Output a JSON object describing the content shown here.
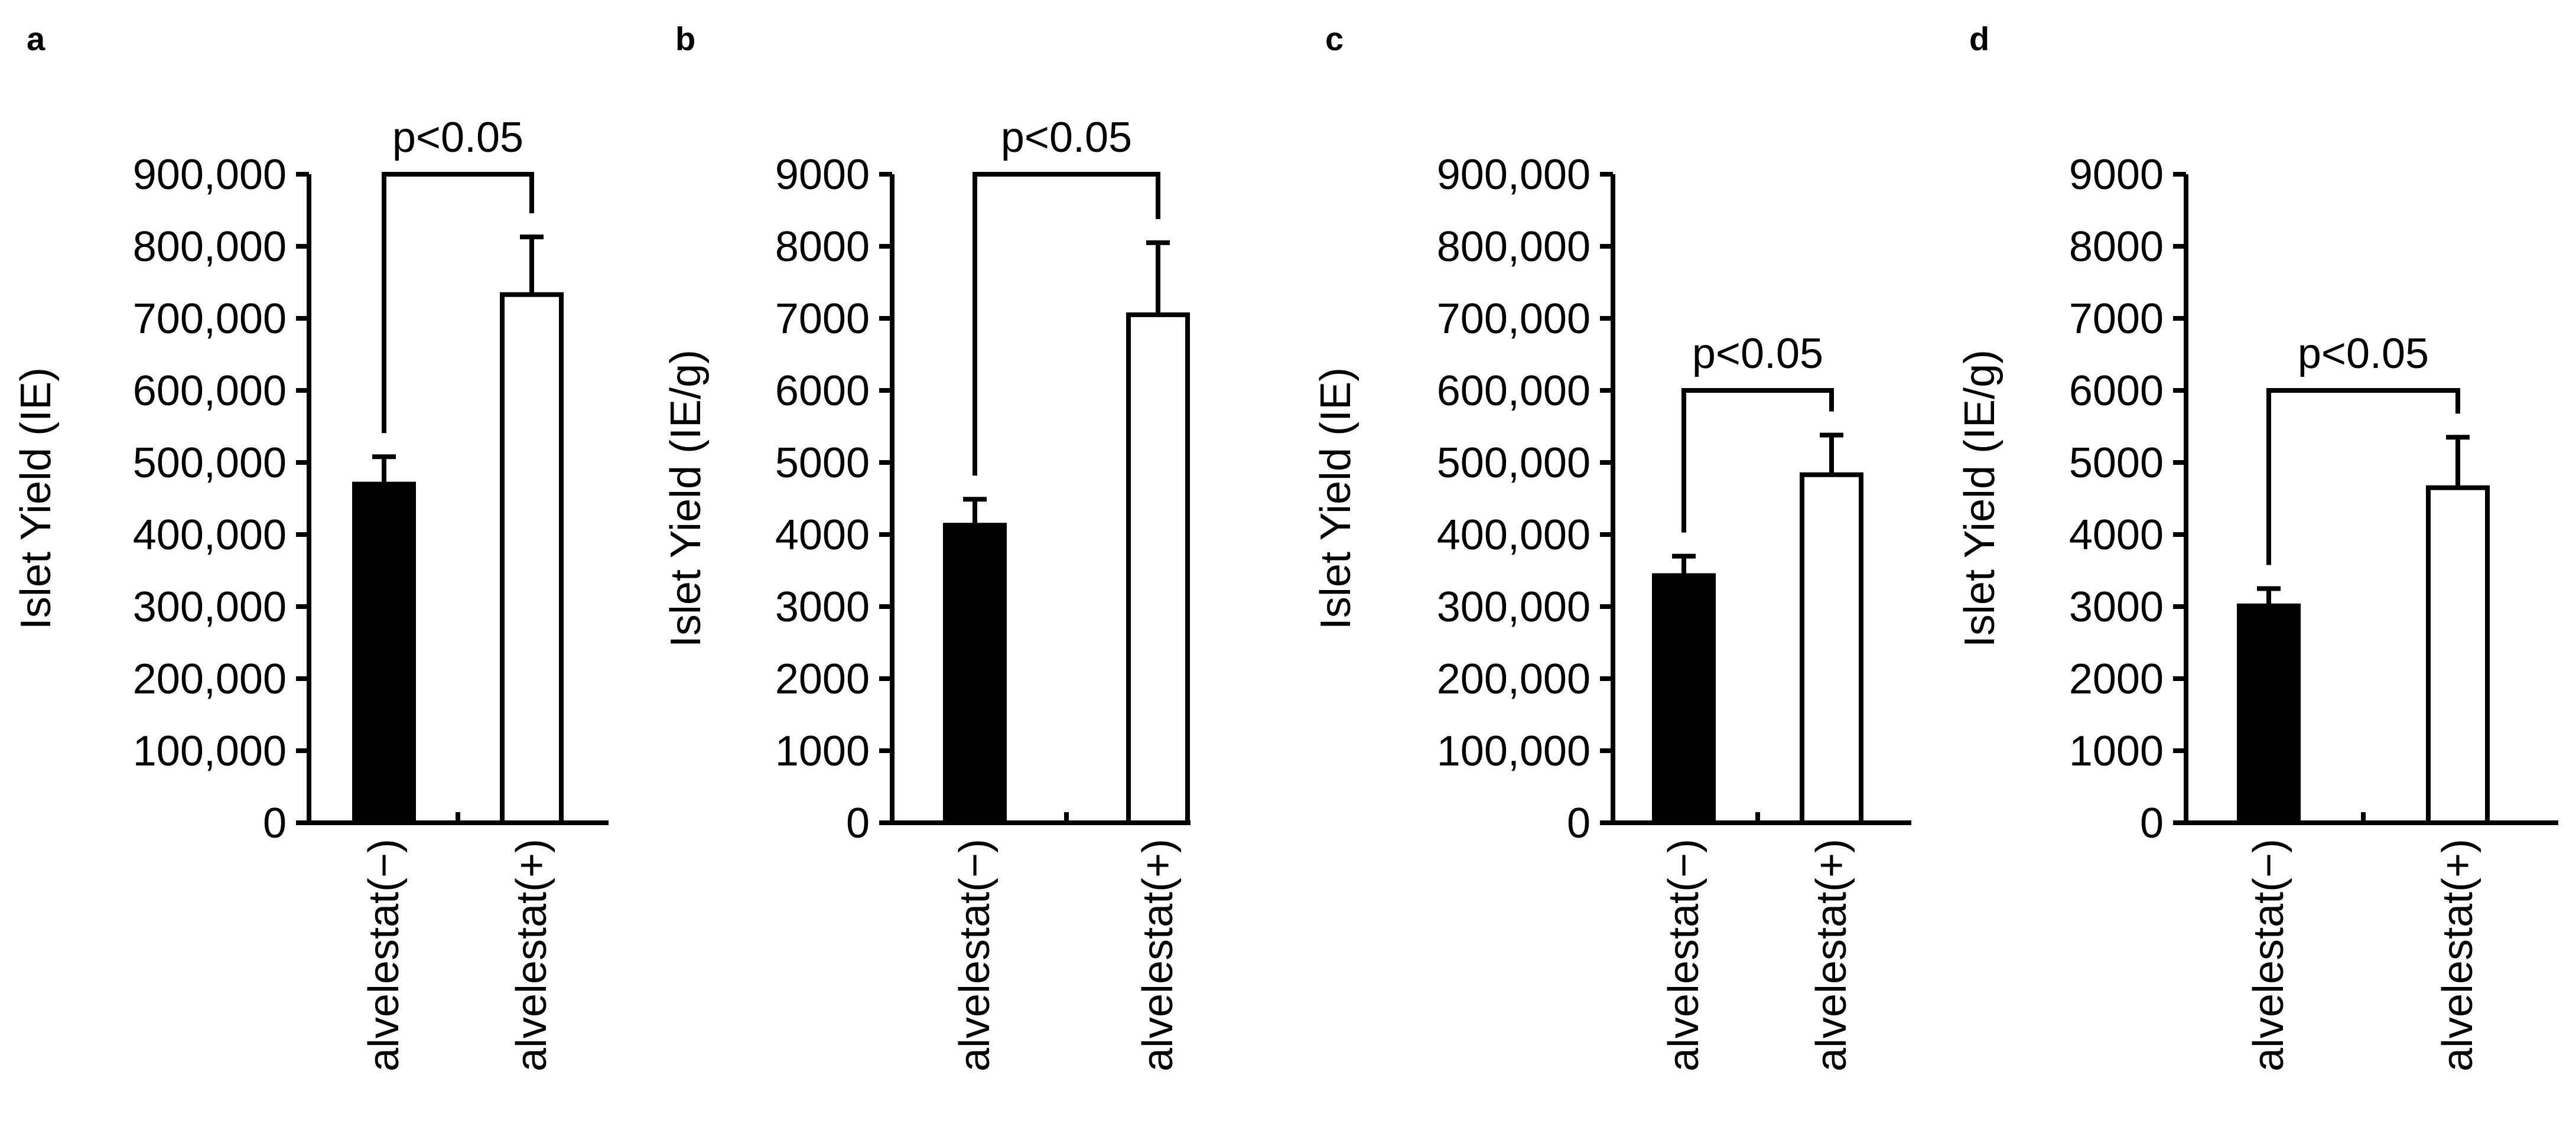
{
  "chart_data": [
    {
      "type": "bar",
      "panel": "a",
      "ylabel": "Islet Yield  (IE)",
      "ylim": [
        0,
        900000
      ],
      "yticks": [
        0,
        100000,
        200000,
        300000,
        400000,
        500000,
        600000,
        700000,
        800000,
        900000
      ],
      "ytick_labels": [
        "0",
        "100,000",
        "200,000",
        "300,000",
        "400,000",
        "500,000",
        "600,000",
        "700,000",
        "800,000",
        "900,000"
      ],
      "categories": [
        "alvelestat(−)",
        "alvelestat(+)"
      ],
      "values": [
        470000,
        733000
      ],
      "errors": [
        38000,
        80000
      ],
      "colors": [
        "#000000",
        "#ffffff"
      ],
      "significance": {
        "label": "p<0.05",
        "y": 900000
      }
    },
    {
      "type": "bar",
      "panel": "b",
      "ylabel": "Islet Yield  (IE/g)",
      "ylim": [
        0,
        9000
      ],
      "yticks": [
        0,
        1000,
        2000,
        3000,
        4000,
        5000,
        6000,
        7000,
        8000,
        9000
      ],
      "ytick_labels": [
        "0",
        "1000",
        "2000",
        "3000",
        "4000",
        "5000",
        "6000",
        "7000",
        "8000",
        "9000"
      ],
      "categories": [
        "alvelestat(−)",
        "alvelestat(+)"
      ],
      "values": [
        4130,
        7050
      ],
      "errors": [
        360,
        1000
      ],
      "colors": [
        "#000000",
        "#ffffff"
      ],
      "significance": {
        "label": "p<0.05",
        "y": 9000
      }
    },
    {
      "type": "bar",
      "panel": "c",
      "ylabel": "Islet Yield  (IE)",
      "ylim": [
        0,
        900000
      ],
      "yticks": [
        0,
        100000,
        200000,
        300000,
        400000,
        500000,
        600000,
        700000,
        800000,
        900000
      ],
      "ytick_labels": [
        "0",
        "100,000",
        "200,000",
        "300,000",
        "400,000",
        "500,000",
        "600,000",
        "700,000",
        "800,000",
        "900,000"
      ],
      "categories": [
        "alvelestat(−)",
        "alvelestat(+)"
      ],
      "values": [
        343000,
        483000
      ],
      "errors": [
        27000,
        55000
      ],
      "colors": [
        "#000000",
        "#ffffff"
      ],
      "significance": {
        "label": "p<0.05",
        "y": 600000
      }
    },
    {
      "type": "bar",
      "panel": "d",
      "ylabel": "Islet Yield  (IE/g)",
      "ylim": [
        0,
        9000
      ],
      "yticks": [
        0,
        1000,
        2000,
        3000,
        4000,
        5000,
        6000,
        7000,
        8000,
        9000
      ],
      "ytick_labels": [
        "0",
        "1000",
        "2000",
        "3000",
        "4000",
        "5000",
        "6000",
        "7000",
        "8000",
        "9000"
      ],
      "categories": [
        "alvelestat(−)",
        "alvelestat(+)"
      ],
      "values": [
        3010,
        4650
      ],
      "errors": [
        240,
        700
      ],
      "colors": [
        "#000000",
        "#ffffff"
      ],
      "significance": {
        "label": "p<0.05",
        "y": 6000
      }
    }
  ]
}
